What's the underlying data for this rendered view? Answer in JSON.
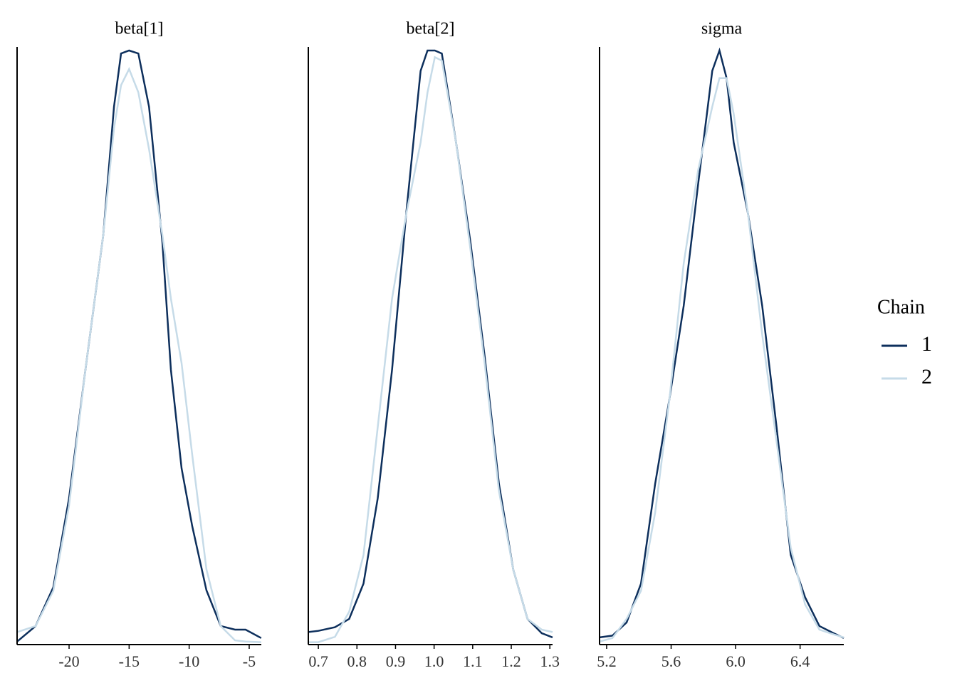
{
  "chart_data": [
    {
      "type": "line",
      "title": "beta[1]",
      "legend_title": "Chain",
      "x": [
        -24.33,
        -22.79,
        -21.31,
        -20,
        -18.64,
        -17.15,
        -16.26,
        -15.67,
        -15,
        -14.23,
        -13.34,
        -12.23,
        -11.52,
        -10.63,
        -9.74,
        -8.56,
        -7.37,
        -6.18,
        -5.3,
        -4
      ],
      "series": [
        {
          "name": "1",
          "color": "#0d2f5c",
          "values": [
            0.005,
            0.031,
            0.096,
            0.245,
            0.46,
            0.686,
            0.9,
            0.989,
            0.994,
            0.989,
            0.9,
            0.674,
            0.46,
            0.295,
            0.198,
            0.091,
            0.031,
            0.025,
            0.025,
            0.011
          ]
        },
        {
          "name": "2",
          "color": "#c6dbe8",
          "values": [
            0.021,
            0.031,
            0.09,
            0.233,
            0.46,
            0.686,
            0.864,
            0.936,
            0.963,
            0.924,
            0.829,
            0.686,
            0.579,
            0.471,
            0.317,
            0.126,
            0.031,
            0.007,
            0.005,
            0.004
          ]
        }
      ],
      "xlim": [
        -24.33,
        -3.99
      ],
      "xticks": [
        -20,
        -15,
        -10,
        -5
      ],
      "ylim": [
        0,
        1
      ]
    },
    {
      "type": "line",
      "title": "beta[2]",
      "x": [
        0.674,
        0.7,
        0.743,
        0.78,
        0.817,
        0.854,
        0.891,
        0.928,
        0.965,
        0.983,
        1.002,
        1.02,
        1.057,
        1.094,
        1.131,
        1.168,
        1.205,
        1.242,
        1.279,
        1.307
      ],
      "series": [
        {
          "name": "1",
          "color": "#0d2f5c",
          "values": [
            0.021,
            0.023,
            0.029,
            0.043,
            0.102,
            0.245,
            0.46,
            0.723,
            0.96,
            0.994,
            0.994,
            0.989,
            0.84,
            0.674,
            0.483,
            0.269,
            0.126,
            0.043,
            0.019,
            0.012
          ]
        },
        {
          "name": "2",
          "color": "#c6dbe8",
          "values": [
            0.004,
            0.004,
            0.013,
            0.055,
            0.15,
            0.364,
            0.579,
            0.721,
            0.84,
            0.924,
            0.983,
            0.977,
            0.84,
            0.662,
            0.471,
            0.257,
            0.126,
            0.043,
            0.025,
            0.021
          ]
        }
      ],
      "xlim": [
        0.674,
        1.307
      ],
      "xticks": [
        0.7,
        0.8,
        0.9,
        {
          "value": 1,
          "label": "1.0"
        },
        1.1,
        1.2,
        1.3
      ],
      "ylim": [
        0,
        1
      ]
    },
    {
      "type": "line",
      "title": "sigma",
      "x": [
        5.156,
        5.236,
        5.324,
        5.413,
        5.501,
        5.59,
        5.678,
        5.767,
        5.855,
        5.9,
        5.944,
        5.988,
        6.077,
        6.165,
        6.254,
        6.342,
        6.431,
        6.52,
        6.608,
        6.671
      ],
      "series": [
        {
          "name": "1",
          "color": "#0d2f5c",
          "values": [
            0.012,
            0.015,
            0.037,
            0.102,
            0.269,
            0.412,
            0.567,
            0.769,
            0.96,
            0.994,
            0.948,
            0.84,
            0.721,
            0.567,
            0.364,
            0.15,
            0.079,
            0.031,
            0.019,
            0.011
          ]
        },
        {
          "name": "2",
          "color": "#c6dbe8",
          "values": [
            0.005,
            0.011,
            0.043,
            0.09,
            0.221,
            0.412,
            0.638,
            0.793,
            0.9,
            0.948,
            0.948,
            0.888,
            0.721,
            0.519,
            0.34,
            0.162,
            0.067,
            0.025,
            0.017,
            0.012
          ]
        }
      ],
      "xlim": [
        5.156,
        6.671
      ],
      "xticks": [
        5.2,
        5.6,
        {
          "value": 6,
          "label": "6.0"
        },
        6.4
      ],
      "ylim": [
        0,
        1
      ]
    }
  ]
}
